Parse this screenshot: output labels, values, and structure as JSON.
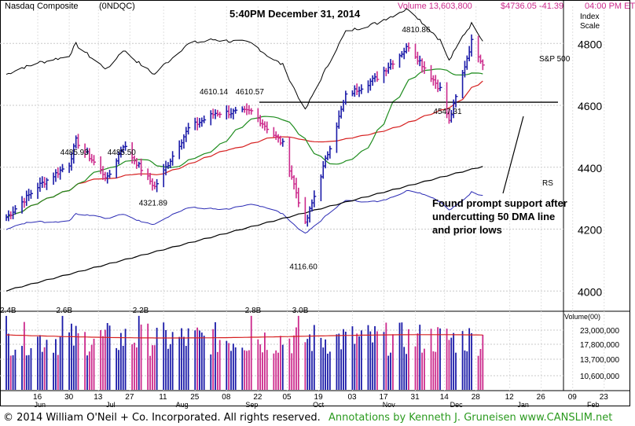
{
  "header": {
    "index_name": "Nasdaq Composite",
    "symbol": "(0NDQC)",
    "timestamp": "5:40PM December 31, 2014",
    "volume": "Volume 13,603,800",
    "price_change": "$4736.05 -41.39",
    "time_et": "04:00 PM ET",
    "scale_label_line1": "Index",
    "scale_label_line2": "Scale"
  },
  "colors": {
    "up_bar": "#1a1aa8",
    "down_bar": "#cc2a8c",
    "ma50": "#1e8c1e",
    "ma200_red": "#d62020",
    "long_ma": "#000000",
    "rs": "#2a2ab4",
    "sp500": "#000000",
    "support_line": "#000000",
    "volume_avg": "#d62020",
    "footer_credit": "#2a9a1e"
  },
  "annotation": {
    "lines": [
      "Found prompt support after",
      "undercutting 50 DMA line",
      "and prior lows"
    ]
  },
  "chart_data": [
    {
      "type": "candlestick",
      "ylim": [
        3950,
        4920
      ],
      "y_ticks": [
        4000,
        4200,
        4400,
        4600,
        4800
      ],
      "x_month_labels": [
        "Jun",
        "Jul",
        "Aug",
        "Sep",
        "Oct",
        "Nov",
        "Dec",
        "Jan",
        "Feb"
      ],
      "x_day_labels": [
        "16",
        "30",
        "13",
        "27",
        "11",
        "25",
        "08",
        "22",
        "05",
        "19",
        "03",
        "17",
        "31",
        "14",
        "28",
        "12",
        "26",
        "09",
        "23"
      ],
      "price_labels": [
        {
          "text": "4485.93",
          "date": "Jul 3",
          "value": 4485.93
        },
        {
          "text": "4485.50",
          "date": "Jul 24",
          "value": 4485.5
        },
        {
          "text": "4321.89",
          "date": "Aug 7",
          "value": 4321.89
        },
        {
          "text": "4610.14",
          "date": "Sep 3",
          "value": 4610.14
        },
        {
          "text": "4610.57",
          "date": "Sep 19",
          "value": 4610.57
        },
        {
          "text": "4116.60",
          "date": "Oct 13",
          "value": 4116.6
        },
        {
          "text": "4810.86",
          "date": "Dec 2",
          "value": 4810.86
        },
        {
          "text": "4547.31",
          "date": "Dec 16",
          "value": 4547.31
        }
      ],
      "series_labels": [
        "S&P 500",
        "RS"
      ],
      "support_level": 4610,
      "close_estimates": [
        [
          "Jun 2",
          4238
        ],
        [
          "Jun 16",
          4338
        ],
        [
          "Jun 30",
          4410
        ],
        [
          "Jul 3",
          4486
        ],
        [
          "Jul 17",
          4363
        ],
        [
          "Jul 24",
          4472
        ],
        [
          "Aug 7",
          4336
        ],
        [
          "Aug 22",
          4525
        ],
        [
          "Sep 3",
          4575
        ],
        [
          "Sep 19",
          4580
        ],
        [
          "Oct 3",
          4475
        ],
        [
          "Oct 13",
          4214
        ],
        [
          "Oct 31",
          4630
        ],
        [
          "Nov 14",
          4690
        ],
        [
          "Nov 28",
          4792
        ],
        [
          "Dec 12",
          4653
        ],
        [
          "Dec 16",
          4547
        ],
        [
          "Dec 26",
          4806
        ],
        [
          "Dec 31",
          4736
        ]
      ]
    },
    {
      "type": "bar",
      "title": "Volume(00)",
      "y_ticks": [
        "23,000,000",
        "17,800,000",
        "13,700,000",
        "10,600,000"
      ],
      "peak_labels": [
        {
          "text": "2.4B",
          "date": "Jun 2"
        },
        {
          "text": "2.6B",
          "date": "Jun 27"
        },
        {
          "text": "2.2B",
          "date": "Jul 31"
        },
        {
          "text": "2.8B",
          "date": "Sep 19"
        },
        {
          "text": "3.0B",
          "date": "Oct 10"
        }
      ]
    }
  ],
  "footer": {
    "copyright": "© 2014 William O'Neil + Co. Incorporated. All rights reserved.",
    "credit": "Annotations by Kenneth J. Gruneisen www.CANSLIM.net"
  }
}
